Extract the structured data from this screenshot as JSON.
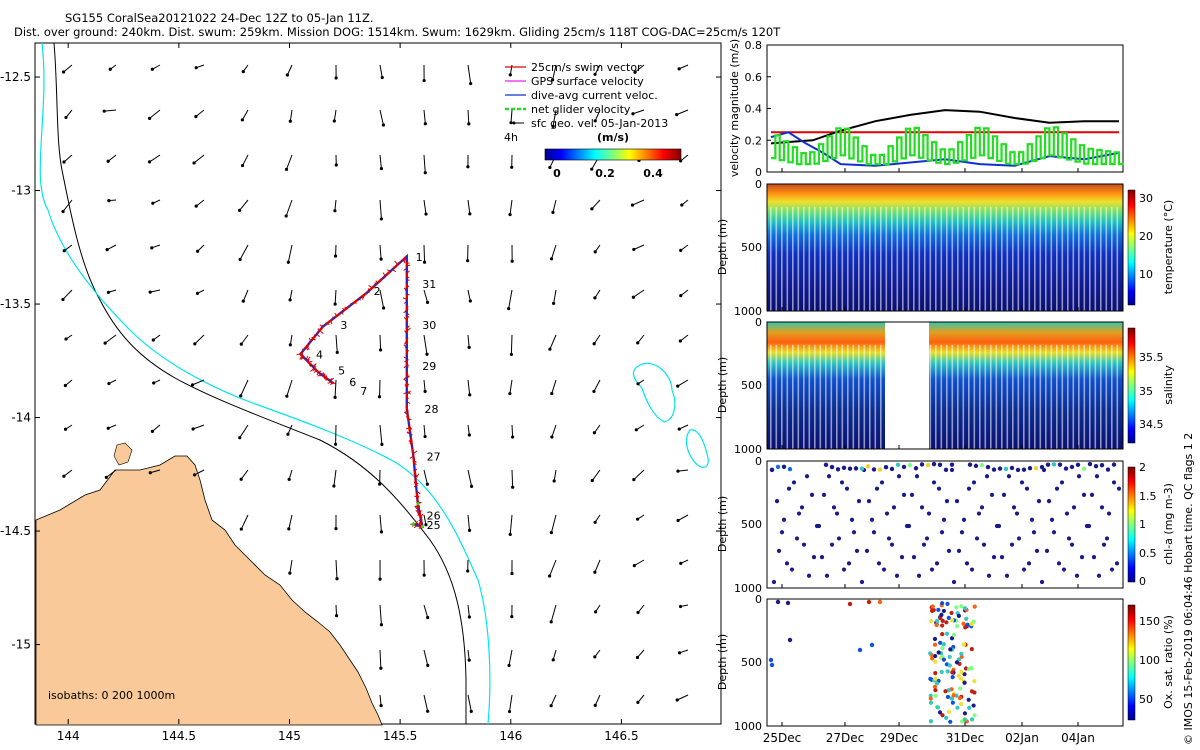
{
  "header": {
    "line1": "SG155 CoralSea20121022 24-Dec 12Z to 05-Jan 11Z.",
    "line2": "Dist. over ground: 240km. Dist. swum: 259km. Mission DOG: 1514km. Swum: 1629km. Gliding 25cm/s 118T COG-DAC=25cm/s 120T"
  },
  "colors": {
    "land": "#f9c99a",
    "isobath200": "#000000",
    "isobath1000": "#00e5ee",
    "track_red": "#e00000",
    "track_blue": "#1030d0",
    "net_green": "#22dd22",
    "gps_magenta": "#ee22ee"
  },
  "chart_data": [
    {
      "type": "scatter",
      "name": "map",
      "xlim": [
        143.85,
        146.95
      ],
      "ylim": [
        -15.35,
        -12.35
      ],
      "xticks": [
        144,
        144.5,
        145,
        145.5,
        146,
        146.5
      ],
      "yticks": [
        -12.5,
        -13,
        -13.5,
        -14,
        -14.5,
        -15
      ],
      "xtick_labels": [
        "144",
        "144.5",
        "145",
        "145.5",
        "146",
        "146.5"
      ],
      "ytick_labels": [
        "-12.5",
        "-13",
        "-13.5",
        "-14",
        "-14.5",
        "-15"
      ],
      "legend": [
        {
          "label": "25cm/s swim vector",
          "color": "#e00000"
        },
        {
          "label": "GPS surface velocity",
          "color": "#ee22ee"
        },
        {
          "label": "dive-avg current veloc.",
          "color": "#1030d0"
        },
        {
          "label": "net glider velocity",
          "color": "#22dd22"
        },
        {
          "label": "sfc geo. vel. 05-Jan-2013",
          "color": "#000000"
        }
      ],
      "legend_position": "top-right",
      "vector_time_label": "4h",
      "colorbar": {
        "label": "(m/s)",
        "ticks": [
          "0",
          "0.2",
          "0.4"
        ],
        "range": [
          0,
          0.5
        ]
      },
      "isobath_label": "isobaths: 0   200  1000m",
      "track": [
        [
          145.56,
          -14.47
        ],
        [
          145.6,
          -14.48
        ],
        [
          145.58,
          -14.38
        ],
        [
          145.56,
          -14.17
        ],
        [
          145.53,
          -13.96
        ],
        [
          145.53,
          -13.74
        ],
        [
          145.53,
          -13.52
        ],
        [
          145.53,
          -13.29
        ],
        [
          145.35,
          -13.45
        ],
        [
          145.15,
          -13.6
        ],
        [
          145.05,
          -13.72
        ],
        [
          145.13,
          -13.8
        ],
        [
          145.2,
          -13.85
        ]
      ],
      "day_labels": [
        {
          "text": "1",
          "lon": 145.57,
          "lat": -13.31
        },
        {
          "text": "2",
          "lon": 145.38,
          "lat": -13.46
        },
        {
          "text": "3",
          "lon": 145.23,
          "lat": -13.61
        },
        {
          "text": "4",
          "lon": 145.12,
          "lat": -13.74
        },
        {
          "text": "5",
          "lon": 145.22,
          "lat": -13.81
        },
        {
          "text": "6",
          "lon": 145.27,
          "lat": -13.86
        },
        {
          "text": "7",
          "lon": 145.32,
          "lat": -13.9
        },
        {
          "text": "25",
          "lon": 145.62,
          "lat": -14.49
        },
        {
          "text": "26",
          "lon": 145.62,
          "lat": -14.45
        },
        {
          "text": "27",
          "lon": 145.62,
          "lat": -14.19
        },
        {
          "text": "28",
          "lon": 145.61,
          "lat": -13.98
        },
        {
          "text": "29",
          "lon": 145.6,
          "lat": -13.79
        },
        {
          "text": "30",
          "lon": 145.6,
          "lat": -13.61
        },
        {
          "text": "31",
          "lon": 145.6,
          "lat": -13.43
        }
      ]
    },
    {
      "type": "line",
      "name": "velocity",
      "ylabel": "velocity magnitude (m/s)",
      "ylim": [
        0,
        0.8
      ],
      "yticks": [
        "0",
        "0.2",
        "0.4",
        "0.6",
        "0.8"
      ],
      "series": [
        {
          "color": "#e00000",
          "x": [
            0,
            1
          ],
          "y": [
            0.25,
            0.25
          ]
        },
        {
          "color": "#000000",
          "x": [
            0,
            0.06,
            0.12,
            0.2,
            0.3,
            0.4,
            0.5,
            0.6,
            0.7,
            0.8,
            0.9,
            1
          ],
          "y": [
            0.18,
            0.19,
            0.2,
            0.26,
            0.32,
            0.36,
            0.39,
            0.38,
            0.34,
            0.31,
            0.32,
            0.32
          ]
        },
        {
          "color": "#1030d0",
          "x": [
            0,
            0.05,
            0.1,
            0.15,
            0.2,
            0.3,
            0.4,
            0.5,
            0.6,
            0.7,
            0.8,
            0.9,
            1
          ],
          "y": [
            0.22,
            0.25,
            0.18,
            0.12,
            0.05,
            0.04,
            0.06,
            0.08,
            0.05,
            0.04,
            0.1,
            0.08,
            0.12
          ]
        },
        {
          "color": "#22dd22",
          "x": [
            0,
            0.1,
            0.2,
            0.3,
            0.4,
            0.5,
            0.6,
            0.7,
            0.8,
            0.9,
            1
          ],
          "y": [
            0.25,
            0.1,
            0.3,
            0.08,
            0.3,
            0.12,
            0.3,
            0.1,
            0.3,
            0.15,
            0.12
          ]
        }
      ]
    },
    {
      "type": "heatmap",
      "name": "temperature",
      "ylabel": "Depth (m)",
      "cbar_label": "temperature (°C)",
      "yticks": [
        "0",
        "500",
        "1000"
      ],
      "cbar_ticks": [
        "30",
        "20",
        "10"
      ]
    },
    {
      "type": "heatmap",
      "name": "salinity",
      "ylabel": "Depth (m)",
      "cbar_label": "salinity",
      "yticks": [
        "0",
        "500",
        "1000"
      ],
      "cbar_ticks": [
        "35.5",
        "35",
        "34.5"
      ]
    },
    {
      "type": "heatmap",
      "name": "chla",
      "ylabel": "Depth (m)",
      "cbar_label": "chl-a (mg m-3)",
      "yticks": [
        "0",
        "500",
        "1000"
      ],
      "cbar_ticks": [
        "2",
        "1.5",
        "1",
        "0.5",
        "0"
      ]
    },
    {
      "type": "scatter",
      "name": "oxygen",
      "ylabel": "Depth (m)",
      "cbar_label": "Ox. sat. ratio (%)",
      "yticks": [
        "0",
        "500",
        "1000"
      ],
      "cbar_ticks": [
        "150",
        "100",
        "50"
      ],
      "xtick_labels": [
        "25Dec",
        "27Dec",
        "29Dec",
        "31Dec",
        "02Jan",
        "04Jan"
      ]
    }
  ],
  "footer_vertical": "© IMOS 15-Feb-2019 06:04:46 Hobart time. QC flags 1  2"
}
